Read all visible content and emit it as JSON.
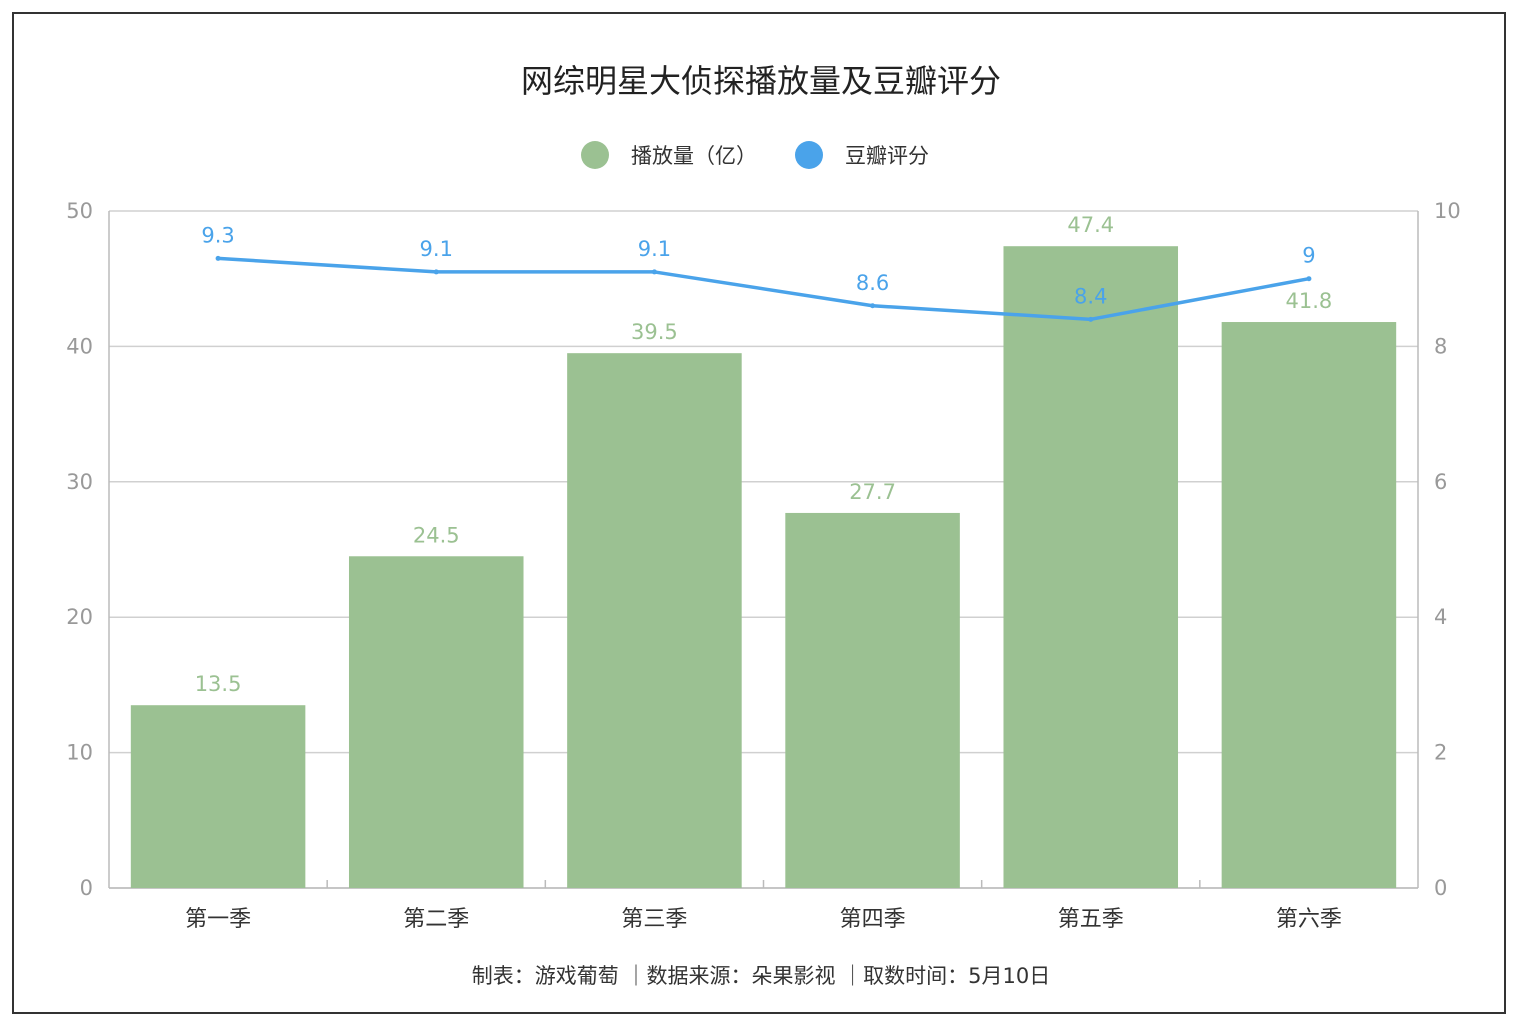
{
  "chart_data": {
    "type": "bar",
    "title": "网综明星大侦探播放量及豆瓣评分",
    "categories": [
      "第一季",
      "第二季",
      "第三季",
      "第四季",
      "第五季",
      "第六季"
    ],
    "series": [
      {
        "name": "播放量（亿）",
        "type": "bar",
        "axis": "left",
        "color": "#9bc192",
        "values": [
          13.5,
          24.5,
          39.5,
          27.7,
          47.4,
          41.8
        ],
        "labels": [
          "13.5",
          "24.5",
          "39.5",
          "27.7",
          "47.4",
          "41.8"
        ]
      },
      {
        "name": "豆瓣评分",
        "type": "line",
        "axis": "right",
        "color": "#4aa3ea",
        "values": [
          9.3,
          9.1,
          9.1,
          8.6,
          8.4,
          9
        ],
        "labels": [
          "9.3",
          "9.1",
          "9.1",
          "8.6",
          "8.4",
          "9"
        ]
      }
    ],
    "y_left": {
      "ylim": [
        0,
        50
      ],
      "ticks": [
        "0",
        "10",
        "20",
        "30",
        "40",
        "50"
      ]
    },
    "y_right": {
      "ylim": [
        0,
        10
      ],
      "ticks": [
        "0",
        "2",
        "4",
        "6",
        "8",
        "10"
      ]
    },
    "grid": true,
    "legend": "top-center"
  },
  "footer": "制表：游戏葡萄 ｜数据来源：朵果影视 ｜取数时间：5月10日",
  "colors": {
    "bar": "#9bc192",
    "line": "#4aa3ea",
    "grid": "#d0d0d0",
    "axis": "#bbbbbb"
  }
}
